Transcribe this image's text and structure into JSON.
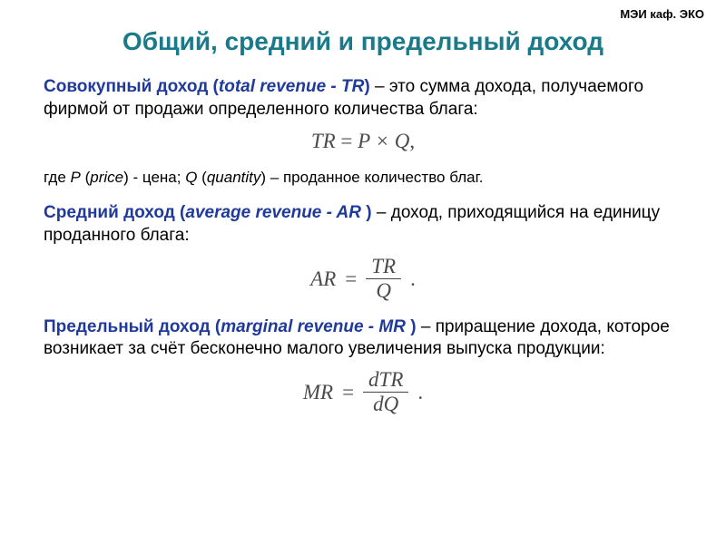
{
  "colors": {
    "title": "#1a7a8a",
    "term": "#1f3a9a",
    "text": "#000000",
    "formula": "#4a4a4a"
  },
  "header": {
    "right": "МЭИ каф. ЭКО"
  },
  "title": "Общий, средний и предельный доход",
  "sec1": {
    "term_ru": "Совокупный доход",
    "term_en": "total revenue - TR",
    "def": " – это сумма дохода, получаемого фирмой от продажи определенного количества блага:",
    "formula_lhs": "TR",
    "formula_rhs": "P × Q",
    "formula_punct": ",",
    "note_pre": "где ",
    "note_p": "P",
    "note_p_en": "price",
    "note_p_def": " - цена; ",
    "note_q": "Q",
    "note_q_en": "quantity",
    "note_q_def": " – проданное количество благ."
  },
  "sec2": {
    "term_ru": "Средний доход",
    "term_en": "average revenue - AR ",
    "def": " – доход, приходящийся на единицу проданного блага:",
    "formula_lhs": "AR",
    "formula_num": "TR",
    "formula_den": "Q",
    "formula_punct": "."
  },
  "sec3": {
    "term_ru": "Предельный доход",
    "term_en": "marginal revenue - MR ",
    "def": " – приращение дохода, которое возникает за счёт бесконечно малого увеличения выпуска продукции:",
    "formula_lhs": "MR",
    "formula_num": "dTR",
    "formula_den": "dQ",
    "formula_punct": "."
  }
}
